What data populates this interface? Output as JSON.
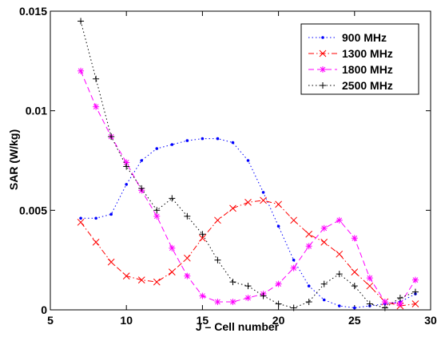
{
  "chart_data": {
    "type": "line",
    "title": "",
    "xlabel": "J – Cell number",
    "ylabel": "SAR (W/kg)",
    "xlim": [
      5,
      30
    ],
    "ylim": [
      0,
      0.015
    ],
    "xticks": [
      5,
      10,
      15,
      20,
      25,
      30
    ],
    "xtick_labels": [
      "5",
      "10",
      "15",
      "20",
      "25",
      "30"
    ],
    "yticks": [
      0,
      0.005,
      0.01,
      0.015
    ],
    "ytick_labels": [
      "0",
      "0.005",
      "0.01",
      "0.015"
    ],
    "grid": false,
    "legend_position": "top-right",
    "x": [
      7,
      8,
      9,
      10,
      11,
      12,
      13,
      14,
      15,
      16,
      17,
      18,
      19,
      20,
      21,
      22,
      23,
      24,
      25,
      26,
      27,
      28,
      29
    ],
    "series": [
      {
        "name": "900 MHz",
        "color": "#0000ff",
        "line_style": "dotted",
        "marker": "point",
        "values": [
          0.0046,
          0.0046,
          0.0048,
          0.0063,
          0.0075,
          0.0081,
          0.0083,
          0.0085,
          0.0086,
          0.0086,
          0.0084,
          0.0075,
          0.0059,
          0.0042,
          0.0025,
          0.0012,
          0.0005,
          0.0002,
          0.0001,
          0.0002,
          0.0003,
          0.0004,
          0.0008
        ]
      },
      {
        "name": "1300 MHz",
        "color": "#ff0000",
        "line_style": "dash-dot",
        "marker": "x",
        "values": [
          0.0044,
          0.0034,
          0.0024,
          0.0017,
          0.0015,
          0.0014,
          0.0019,
          0.0026,
          0.0036,
          0.0045,
          0.0051,
          0.0054,
          0.0055,
          0.0053,
          0.0045,
          0.0038,
          0.0034,
          0.0028,
          0.0019,
          0.0012,
          0.0004,
          0.0002,
          0.0003
        ]
      },
      {
        "name": "1800 MHz",
        "color": "#ff00ff",
        "line_style": "dashed",
        "marker": "asterisk",
        "values": [
          0.012,
          0.0102,
          0.0087,
          0.0074,
          0.006,
          0.0047,
          0.0031,
          0.0017,
          0.0007,
          0.0004,
          0.0004,
          0.0006,
          0.0008,
          0.0013,
          0.0021,
          0.0032,
          0.0041,
          0.0045,
          0.0036,
          0.0016,
          0.0004,
          0.0003,
          0.0015
        ]
      },
      {
        "name": "2500 MHz",
        "color": "#000000",
        "line_style": "dotted",
        "marker": "plus",
        "values": [
          0.0145,
          0.0116,
          0.0087,
          0.0072,
          0.0061,
          0.005,
          0.0056,
          0.0047,
          0.0038,
          0.0025,
          0.0014,
          0.0012,
          0.0007,
          0.0003,
          0.0001,
          0.0004,
          0.0013,
          0.0018,
          0.0012,
          0.0003,
          0.0001,
          0.0006,
          0.0009
        ]
      }
    ]
  }
}
